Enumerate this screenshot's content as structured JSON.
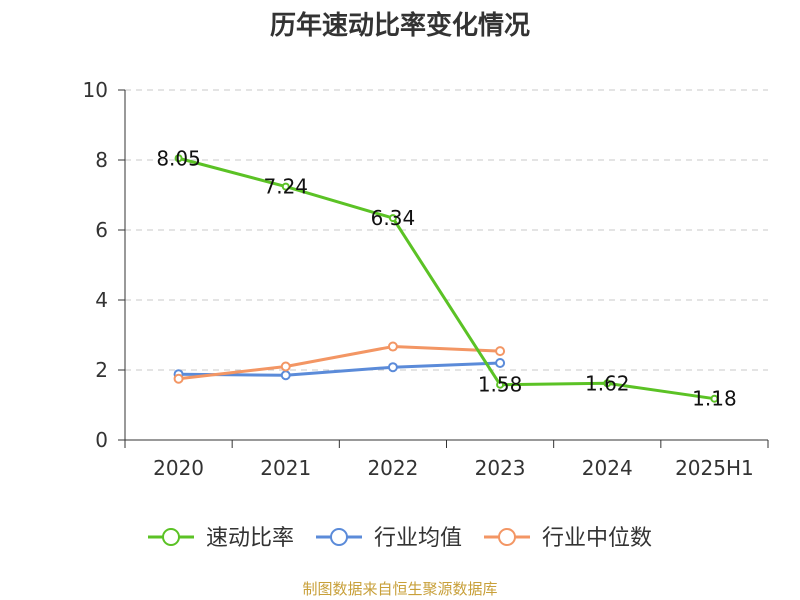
{
  "chart_data": {
    "type": "line",
    "title": "历年速动比率变化情况",
    "xlabel": "",
    "ylabel": "",
    "categories": [
      "2020",
      "2021",
      "2022",
      "2023",
      "2024",
      "2025H1"
    ],
    "ylim": [
      0,
      10
    ],
    "yticks": [
      0,
      2,
      4,
      6,
      8,
      10
    ],
    "grid": true,
    "legend_position": "bottom",
    "series": [
      {
        "name": "速动比率",
        "color": "#5bc225",
        "values": [
          8.05,
          7.24,
          6.34,
          1.58,
          1.62,
          1.18
        ],
        "labels": [
          "8.05",
          "7.24",
          "6.34",
          "1.58",
          "1.62",
          "1.18"
        ]
      },
      {
        "name": "行业均值",
        "color": "#5b8bd9",
        "values": [
          1.88,
          1.85,
          2.08,
          2.2,
          null,
          null
        ]
      },
      {
        "name": "行业中位数",
        "color": "#f39664",
        "values": [
          1.75,
          2.1,
          2.67,
          2.54,
          null,
          null
        ]
      }
    ]
  },
  "source": "制图数据来自恒生聚源数据库"
}
